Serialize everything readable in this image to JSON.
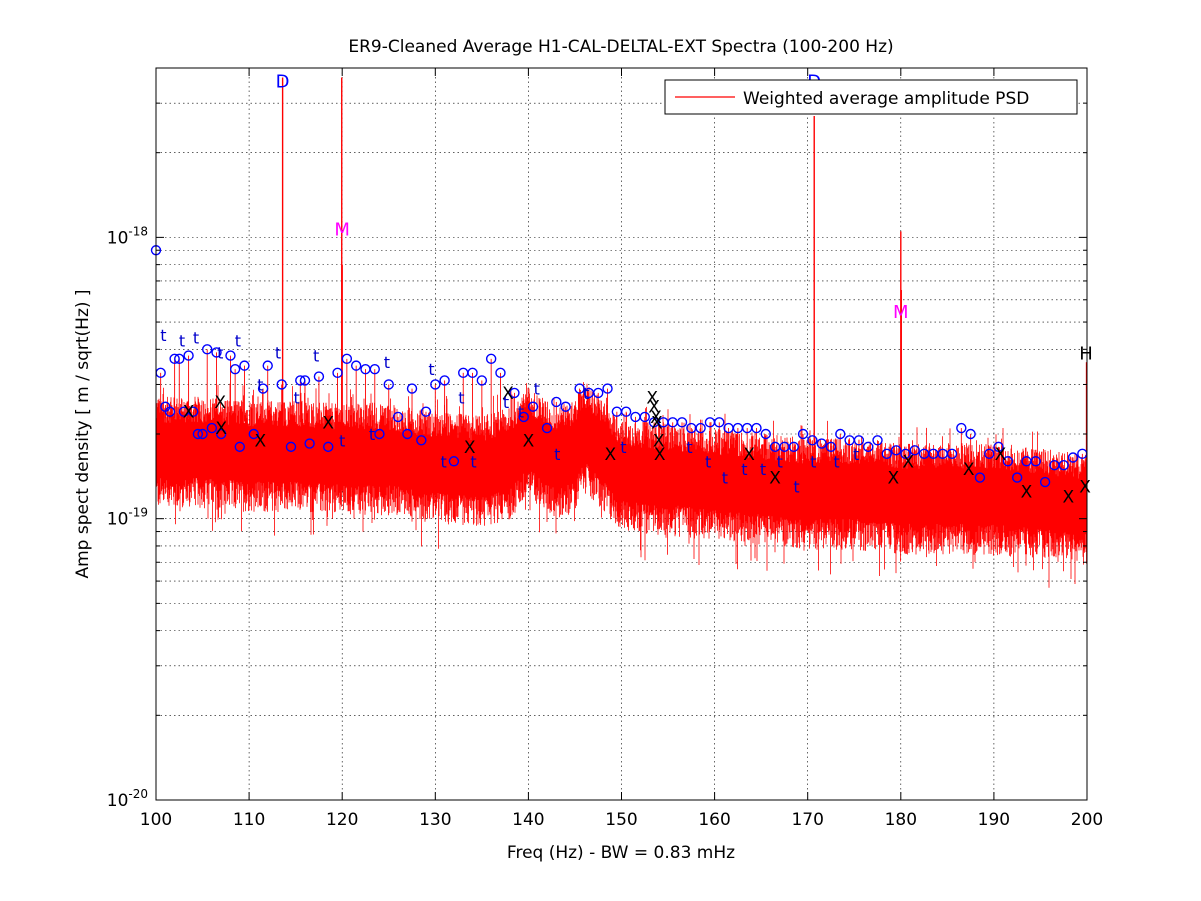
{
  "chart_data": {
    "type": "line",
    "title": "ER9-Cleaned Average H1-CAL-DELTAL-EXT Spectra (100-200 Hz)",
    "xlabel": "Freq (Hz) - BW = 0.83 mHz",
    "ylabel": "Amp spect density [ m / sqrt(Hz) ]",
    "xlim": [
      100,
      200
    ],
    "ylim": [
      1e-20,
      4e-18
    ],
    "yscale": "log",
    "grid": "on",
    "legend_position": "top-right",
    "x_ticks": [
      "100",
      "110",
      "120",
      "130",
      "140",
      "150",
      "160",
      "170",
      "180",
      "190",
      "200"
    ],
    "y_ticks": [
      {
        "base": "10",
        "exp": "-20",
        "value": 1e-20
      },
      {
        "base": "10",
        "exp": "-19",
        "value": 1e-19
      },
      {
        "base": "10",
        "exp": "-18",
        "value": 1e-18
      }
    ],
    "series": [
      {
        "name": "Weighted average amplitude PSD",
        "color": "#ff0000"
      }
    ],
    "noise_floor": {
      "x": [
        100,
        105,
        110,
        115,
        120,
        125,
        130,
        135,
        138,
        140,
        143,
        145,
        146,
        150,
        155,
        160,
        165,
        170,
        175,
        180,
        185,
        190,
        195,
        200
      ],
      "center": [
        1.75e-19,
        1.75e-19,
        1.7e-19,
        1.7e-19,
        1.65e-19,
        1.65e-19,
        1.55e-19,
        1.5e-19,
        1.6e-19,
        1.9e-19,
        1.6e-19,
        1.7e-19,
        2e-19,
        1.45e-19,
        1.4e-19,
        1.35e-19,
        1.3e-19,
        1.25e-19,
        1.25e-19,
        1.2e-19,
        1.2e-19,
        1.2e-19,
        1.15e-19,
        1.1e-19
      ]
    },
    "peaks": [
      {
        "x": 113.6,
        "y": 3.7e-18
      },
      {
        "x": 119.95,
        "y": 3.7e-18
      },
      {
        "x": 120.0,
        "y": 8e-19
      },
      {
        "x": 170.7,
        "y": 2.7e-18
      },
      {
        "x": 180.0,
        "y": 1.05e-18
      },
      {
        "x": 180.05,
        "y": 6.5e-19
      },
      {
        "x": 199.95,
        "y": 3.6e-19
      },
      {
        "x": 145.4,
        "y": 2.8e-19
      },
      {
        "x": 139.7,
        "y": 2.4e-19
      },
      {
        "x": 107.1,
        "y": 2.4e-19
      }
    ],
    "annotations": [
      {
        "text": "D",
        "x": 113.6,
        "y": 3.7e-18,
        "color": "#0000ff"
      },
      {
        "text": "D",
        "x": 170.7,
        "y": 3.7e-18,
        "color": "#0000ff"
      },
      {
        "text": "M",
        "x": 120.0,
        "y": 1.1e-18,
        "color": "#ff00ff"
      },
      {
        "text": "M",
        "x": 180.0,
        "y": 5.6e-19,
        "color": "#ff00ff"
      },
      {
        "text": "H",
        "x": 199.9,
        "y": 4e-19,
        "color": "#000000"
      }
    ],
    "circle_markers": [
      [
        100.0,
        9e-19
      ],
      [
        100.5,
        3.3e-19
      ],
      [
        101.0,
        2.5e-19
      ],
      [
        101.5,
        2.4e-19
      ],
      [
        102.0,
        3.7e-19
      ],
      [
        102.5,
        3.7e-19
      ],
      [
        103.0,
        2.4e-19
      ],
      [
        103.5,
        3.8e-19
      ],
      [
        104.0,
        2.4e-19
      ],
      [
        104.5,
        2e-19
      ],
      [
        105.0,
        2e-19
      ],
      [
        105.5,
        4e-19
      ],
      [
        106.0,
        2.1e-19
      ],
      [
        106.5,
        3.9e-19
      ],
      [
        107.0,
        2e-19
      ],
      [
        108.0,
        3.8e-19
      ],
      [
        108.5,
        3.4e-19
      ],
      [
        109.0,
        1.8e-19
      ],
      [
        109.5,
        3.5e-19
      ],
      [
        110.5,
        2e-19
      ],
      [
        111.5,
        2.9e-19
      ],
      [
        112.0,
        3.5e-19
      ],
      [
        113.5,
        3e-19
      ],
      [
        114.5,
        1.8e-19
      ],
      [
        115.5,
        3.1e-19
      ],
      [
        116.0,
        3.1e-19
      ],
      [
        116.5,
        1.85e-19
      ],
      [
        117.5,
        3.2e-19
      ],
      [
        118.5,
        1.8e-19
      ],
      [
        119.5,
        3.3e-19
      ],
      [
        120.5,
        3.7e-19
      ],
      [
        121.5,
        3.5e-19
      ],
      [
        122.5,
        3.4e-19
      ],
      [
        123.5,
        3.4e-19
      ],
      [
        124.0,
        2e-19
      ],
      [
        125.0,
        3e-19
      ],
      [
        126.0,
        2.3e-19
      ],
      [
        127.0,
        2e-19
      ],
      [
        127.5,
        2.9e-19
      ],
      [
        128.5,
        1.9e-19
      ],
      [
        129.0,
        2.4e-19
      ],
      [
        130.0,
        3e-19
      ],
      [
        131.0,
        3.1e-19
      ],
      [
        132.0,
        1.6e-19
      ],
      [
        133.0,
        3.3e-19
      ],
      [
        134.0,
        3.3e-19
      ],
      [
        135.0,
        3.1e-19
      ],
      [
        136.0,
        3.7e-19
      ],
      [
        137.0,
        3.3e-19
      ],
      [
        138.5,
        2.8e-19
      ],
      [
        139.5,
        2.3e-19
      ],
      [
        140.5,
        2.5e-19
      ],
      [
        142.0,
        2.1e-19
      ],
      [
        143.0,
        2.6e-19
      ],
      [
        144.0,
        2.5e-19
      ],
      [
        145.5,
        2.9e-19
      ],
      [
        146.5,
        2.8e-19
      ],
      [
        147.5,
        2.8e-19
      ],
      [
        148.5,
        2.9e-19
      ],
      [
        149.5,
        2.4e-19
      ],
      [
        150.5,
        2.4e-19
      ],
      [
        151.5,
        2.3e-19
      ],
      [
        152.5,
        2.3e-19
      ],
      [
        153.5,
        2.2e-19
      ],
      [
        154.5,
        2.2e-19
      ],
      [
        155.5,
        2.2e-19
      ],
      [
        156.5,
        2.2e-19
      ],
      [
        157.5,
        2.1e-19
      ],
      [
        158.5,
        2.1e-19
      ],
      [
        159.5,
        2.2e-19
      ],
      [
        160.5,
        2.2e-19
      ],
      [
        161.5,
        2.1e-19
      ],
      [
        162.5,
        2.1e-19
      ],
      [
        163.5,
        2.1e-19
      ],
      [
        164.5,
        2.1e-19
      ],
      [
        165.5,
        2e-19
      ],
      [
        166.5,
        1.8e-19
      ],
      [
        167.5,
        1.8e-19
      ],
      [
        168.5,
        1.8e-19
      ],
      [
        169.5,
        2e-19
      ],
      [
        170.5,
        1.9e-19
      ],
      [
        171.5,
        1.85e-19
      ],
      [
        172.5,
        1.8e-19
      ],
      [
        173.5,
        2e-19
      ],
      [
        174.5,
        1.9e-19
      ],
      [
        175.5,
        1.9e-19
      ],
      [
        176.5,
        1.8e-19
      ],
      [
        177.5,
        1.9e-19
      ],
      [
        178.5,
        1.7e-19
      ],
      [
        179.5,
        1.75e-19
      ],
      [
        180.5,
        1.7e-19
      ],
      [
        181.5,
        1.75e-19
      ],
      [
        182.5,
        1.7e-19
      ],
      [
        183.5,
        1.7e-19
      ],
      [
        184.5,
        1.7e-19
      ],
      [
        185.5,
        1.7e-19
      ],
      [
        186.5,
        2.1e-19
      ],
      [
        187.5,
        2e-19
      ],
      [
        188.5,
        1.4e-19
      ],
      [
        189.5,
        1.7e-19
      ],
      [
        190.5,
        1.8e-19
      ],
      [
        191.5,
        1.6e-19
      ],
      [
        192.5,
        1.4e-19
      ],
      [
        193.5,
        1.6e-19
      ],
      [
        194.5,
        1.6e-19
      ],
      [
        195.5,
        1.35e-19
      ],
      [
        196.5,
        1.55e-19
      ],
      [
        197.5,
        1.55e-19
      ],
      [
        198.5,
        1.65e-19
      ],
      [
        199.5,
        1.7e-19
      ]
    ],
    "x_markers": [
      [
        103.5,
        2.4e-19
      ],
      [
        106.9,
        2.6e-19
      ],
      [
        107.0,
        2.1e-19
      ],
      [
        111.2,
        1.9e-19
      ],
      [
        118.5,
        2.2e-19
      ],
      [
        133.7,
        1.8e-19
      ],
      [
        137.8,
        2.8e-19
      ],
      [
        140.0,
        1.9e-19
      ],
      [
        148.8,
        1.7e-19
      ],
      [
        153.3,
        2.7e-19
      ],
      [
        153.5,
        2.5e-19
      ],
      [
        153.7,
        2.3e-19
      ],
      [
        153.8,
        2.2e-19
      ],
      [
        154.0,
        1.9e-19
      ],
      [
        154.1,
        1.7e-19
      ],
      [
        163.7,
        1.7e-19
      ],
      [
        166.5,
        1.4e-19
      ],
      [
        179.2,
        1.4e-19
      ],
      [
        180.8,
        1.6e-19
      ],
      [
        187.3,
        1.5e-19
      ],
      [
        190.7,
        1.7e-19
      ],
      [
        193.5,
        1.25e-19
      ],
      [
        198.0,
        1.2e-19
      ],
      [
        199.8,
        1.3e-19
      ]
    ],
    "t_markers": [
      [
        100.8,
        4.5e-19
      ],
      [
        102.8,
        4.3e-19
      ],
      [
        104.3,
        4.4e-19
      ],
      [
        106.9,
        3.9e-19
      ],
      [
        108.8,
        4.3e-19
      ],
      [
        111.2,
        3e-19
      ],
      [
        113.1,
        3.9e-19
      ],
      [
        115.1,
        2.7e-19
      ],
      [
        117.2,
        3.8e-19
      ],
      [
        120.0,
        1.9e-19
      ],
      [
        123.2,
        2e-19
      ],
      [
        124.8,
        3.6e-19
      ],
      [
        129.6,
        3.4e-19
      ],
      [
        130.9,
        1.6e-19
      ],
      [
        132.8,
        2.7e-19
      ],
      [
        134.1,
        1.6e-19
      ],
      [
        137.6,
        2.6e-19
      ],
      [
        139.2,
        2.4e-19
      ],
      [
        140.9,
        2.9e-19
      ],
      [
        143.1,
        1.7e-19
      ],
      [
        146.2,
        2.8e-19
      ],
      [
        150.2,
        1.8e-19
      ],
      [
        157.3,
        1.8e-19
      ],
      [
        159.3,
        1.6e-19
      ],
      [
        161.1,
        1.4e-19
      ],
      [
        163.2,
        1.5e-19
      ],
      [
        165.2,
        1.5e-19
      ],
      [
        167.0,
        1.6e-19
      ],
      [
        168.8,
        1.3e-19
      ],
      [
        170.6,
        1.6e-19
      ],
      [
        173.1,
        1.6e-19
      ],
      [
        175.2,
        1.7e-19
      ]
    ]
  }
}
